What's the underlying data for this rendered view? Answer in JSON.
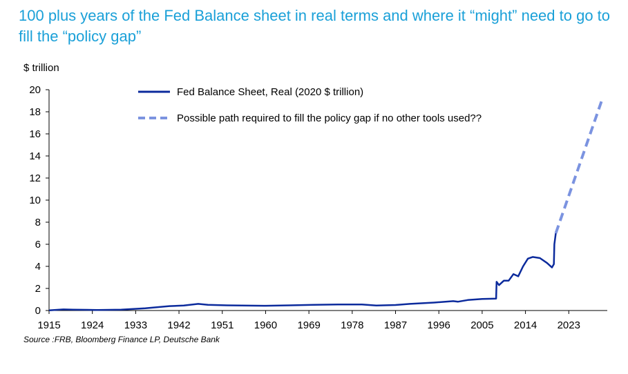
{
  "title": "100 plus years of the Fed Balance sheet in real terms and where it “might” need to go to fill the “policy gap”",
  "source": "Source :FRB, Bloomberg Finance LP, Deutsche Bank",
  "colors": {
    "solid": "#0b2a9c",
    "dashed": "#7b93e0",
    "title": "#1aa0d8"
  },
  "chart_data": {
    "type": "line",
    "title": "100 plus years of the Fed Balance sheet in real terms and where it “might” need to go to fill the “policy gap”",
    "ylabel": "$ trillion",
    "xlabel": "",
    "xlim": [
      1915,
      2031
    ],
    "ylim": [
      0,
      20
    ],
    "x_ticks": [
      1915,
      1924,
      1933,
      1942,
      1951,
      1960,
      1969,
      1978,
      1987,
      1996,
      2005,
      2014,
      2023
    ],
    "y_ticks": [
      0,
      2,
      4,
      6,
      8,
      10,
      12,
      14,
      16,
      18,
      20
    ],
    "legend_position": "top-center",
    "grid": false,
    "series": [
      {
        "name": "Fed Balance Sheet, Real (2020 $ trillion)",
        "style": "solid",
        "x": [
          1915,
          1918,
          1920,
          1925,
          1930,
          1935,
          1940,
          1943,
          1946,
          1948,
          1952,
          1960,
          1965,
          1970,
          1975,
          1980,
          1983,
          1987,
          1990,
          1995,
          1999,
          2000,
          2002,
          2005,
          2007.9,
          2008.0,
          2008.5,
          2009.5,
          2010.5,
          2011.5,
          2012.5,
          2013.5,
          2014.5,
          2015.5,
          2017,
          2018.5,
          2019.5,
          2019.9,
          2020.0,
          2020.3
        ],
        "y": [
          0.02,
          0.1,
          0.08,
          0.05,
          0.08,
          0.2,
          0.4,
          0.45,
          0.6,
          0.52,
          0.47,
          0.43,
          0.47,
          0.52,
          0.55,
          0.55,
          0.45,
          0.5,
          0.6,
          0.72,
          0.85,
          0.8,
          0.95,
          1.05,
          1.08,
          2.6,
          2.3,
          2.7,
          2.7,
          3.3,
          3.1,
          4.0,
          4.7,
          4.85,
          4.75,
          4.3,
          3.9,
          4.2,
          6.0,
          7.0
        ]
      },
      {
        "name": "Possible path required to fill the policy gap if no other tools used??",
        "style": "dashed",
        "x": [
          2020.3,
          2030
        ],
        "y": [
          7.0,
          19.2
        ]
      }
    ]
  }
}
